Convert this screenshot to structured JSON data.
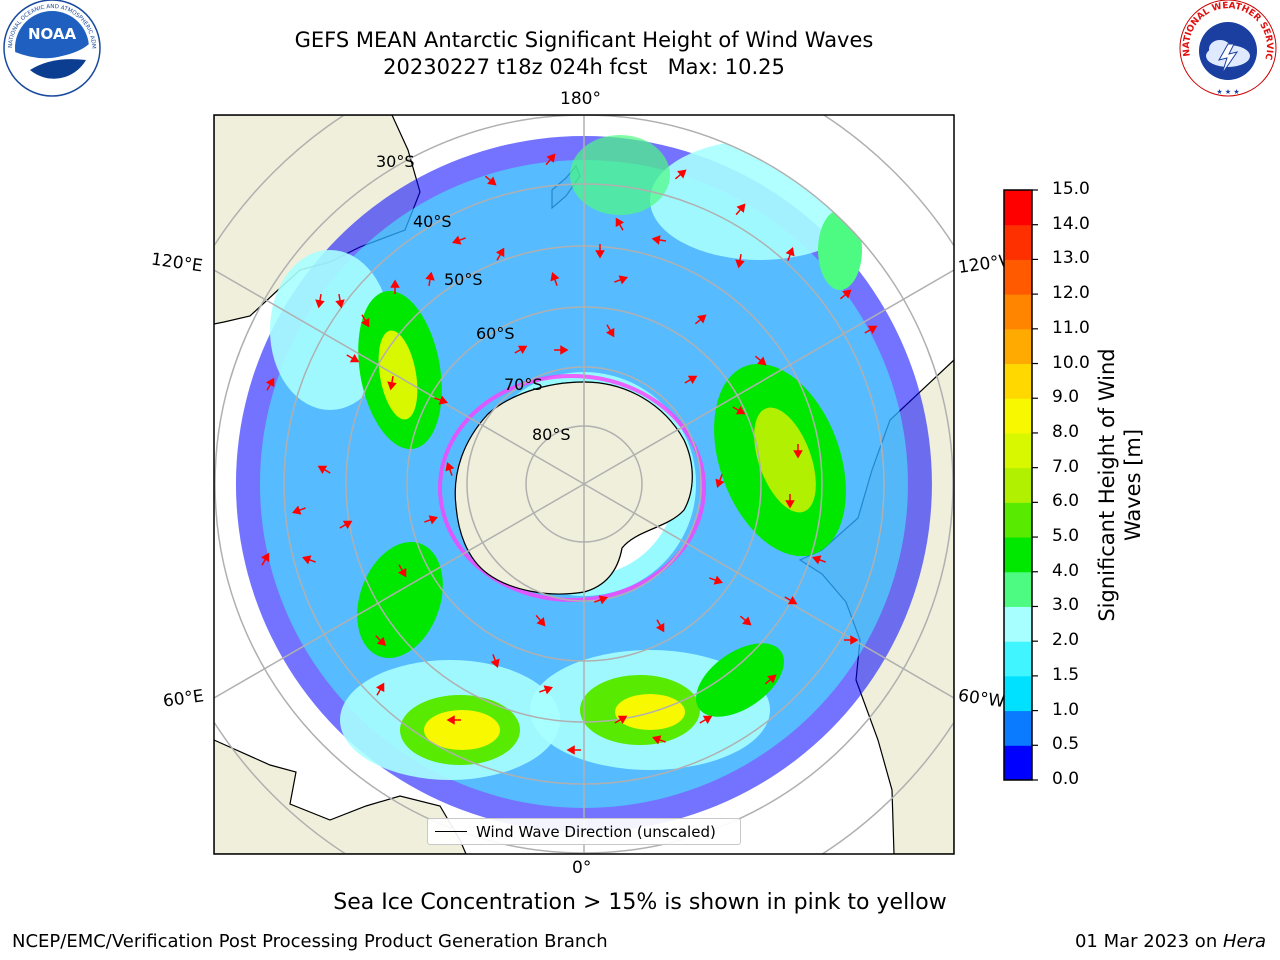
{
  "header": {
    "title_line1": "GEFS MEAN Antarctic Significant Height of Wind Waves",
    "title_line2": "20230227 t18z 024h fcst   Max: 10.25"
  },
  "logos": {
    "left": {
      "name": "NOAA",
      "text": "NOAA",
      "ring_text": "NATIONAL OCEANIC AND ATMOSPHERIC ADMINISTRATION · U.S. DEPARTMENT OF COMMERCE"
    },
    "right": {
      "name": "National Weather Service",
      "ring_text": "NATIONAL WEATHER SERVICE"
    }
  },
  "map": {
    "projection": "south polar stereographic",
    "longitude_labels": {
      "top": "180°",
      "left_upper": "120°E",
      "right_upper": "120°W",
      "left_lower": "60°E",
      "right_lower": "60°W",
      "bottom": "0°"
    },
    "latitude_labels": [
      "30°S",
      "40°S",
      "50°S",
      "60°S",
      "70°S",
      "80°S"
    ],
    "legend_label": "Wind Wave Direction (unscaled)",
    "max_value": 10.25
  },
  "colorbar": {
    "title_line1": "Significant Height of Wind",
    "title_line2": "Waves [m]",
    "ticks": [
      "0.0",
      "0.5",
      "1.0",
      "1.5",
      "2.0",
      "3.0",
      "4.0",
      "5.0",
      "6.0",
      "7.0",
      "8.0",
      "9.0",
      "10.0",
      "11.0",
      "12.0",
      "13.0",
      "14.0",
      "15.0"
    ],
    "colors": [
      "#0000ff",
      "#0a7bff",
      "#00e0ff",
      "#40f5ff",
      "#a8ffff",
      "#4dfa82",
      "#00e800",
      "#58ea00",
      "#b0f000",
      "#d8f800",
      "#f8f800",
      "#ffd800",
      "#ffaa00",
      "#ff8400",
      "#ff5a00",
      "#ff3000",
      "#ff0000"
    ]
  },
  "notes": {
    "ice": "Sea Ice Concentration > 15% is shown in pink to yellow"
  },
  "footer": {
    "left": "NCEP/EMC/Verification Post Processing Product Generation Branch",
    "date": "01 Mar 2023 on ",
    "system": "Hera"
  }
}
